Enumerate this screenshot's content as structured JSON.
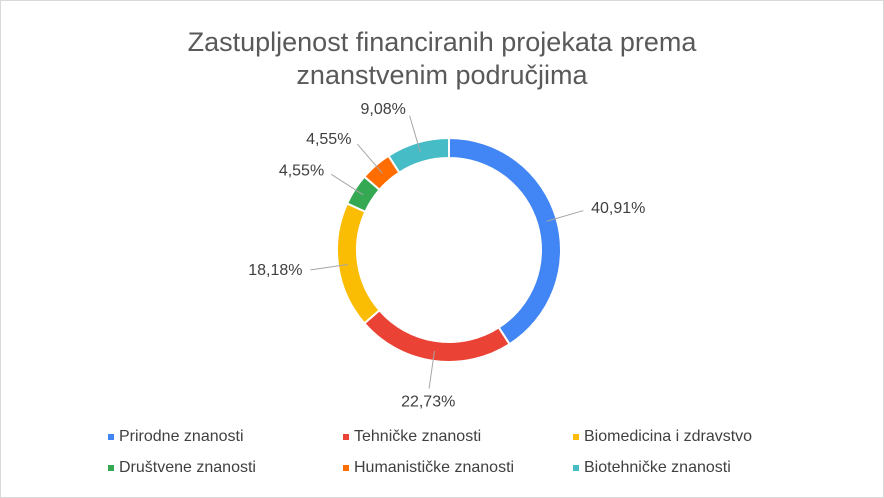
{
  "chart_data": {
    "type": "pie",
    "title": "Zastupljenost financiranih projekata prema znanstvenim područjima",
    "categories": [
      "Prirodne znanosti",
      "Tehničke znanosti",
      "Biomedicina i zdravstvo",
      "Društvene znanosti",
      "Humanističke znanosti",
      "Biotehničke znanosti"
    ],
    "values": [
      40.91,
      22.73,
      18.18,
      4.55,
      4.55,
      9.08
    ],
    "value_labels": [
      "40,91%",
      "22,73%",
      "18,18%",
      "4,55%",
      "4,55%",
      "9,08%"
    ],
    "colors": [
      "#4285f4",
      "#ea4335",
      "#fbbc04",
      "#34a853",
      "#ff6d01",
      "#46bdc6"
    ],
    "legend": "bottom"
  }
}
